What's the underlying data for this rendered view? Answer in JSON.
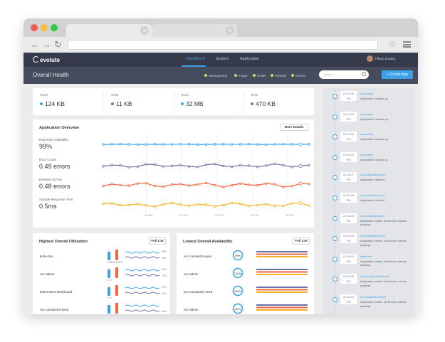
{
  "app": {
    "brand": "evolute",
    "nav": [
      "Dashboard",
      "System",
      "Application"
    ],
    "user_name": "Tiffany Bradley"
  },
  "subnav": {
    "title": "Overall Health",
    "filters": [
      "Management",
      "Image",
      "Health",
      "Partially",
      "Events"
    ],
    "search_placeholder": "search...",
    "create_label": "+ Create App"
  },
  "stats": [
    {
      "label": "Read",
      "value": "124 KB",
      "color": "#3aa3e8"
    },
    {
      "label": "Write",
      "value": "11 KB",
      "color": "#7b7f8c"
    },
    {
      "label": "Read",
      "value": "32 MB",
      "color": "#3aa3e8"
    },
    {
      "label": "Write",
      "value": "470 KB",
      "color": "#7b7f8c"
    }
  ],
  "overview": {
    "title": "Application Overview",
    "more_label": "More Details",
    "metrics": [
      {
        "label": "Reported Availability",
        "value": "99%",
        "color": "#3aa3e8"
      },
      {
        "label": "Error Count",
        "value": "0.49 errors",
        "color": "#6a6ea6"
      },
      {
        "label": "Deviation Errors",
        "value": "0.48 errors",
        "color": "#f2663f"
      },
      {
        "label": "Sample Response Time",
        "value": "0.5ms",
        "color": "#f4b125"
      }
    ],
    "times": [
      "09 AM",
      "12 PM",
      "03 PM",
      "06 PM",
      "09 PM"
    ]
  },
  "utilization": {
    "title": "Highest Overall Utilization",
    "full_label": "Full List",
    "rows": [
      {
        "name": "kube-dns",
        "c": "68%",
        "m": "92%",
        "p1": "99%",
        "p2": "29%"
      },
      {
        "name": "svc-admin",
        "c": "",
        "m": "",
        "p1": "86%",
        "p2": "70%"
      },
      {
        "name": "kubernetes-dashboard",
        "c": "",
        "m": "",
        "p1": "72%",
        "p2": "41%"
      },
      {
        "name": "svc-cassandra-seed",
        "c": "",
        "m": "",
        "p1": "",
        "p2": "65%"
      }
    ]
  },
  "availability": {
    "title": "Lowest Overall Availability",
    "full_label": "Full List",
    "rows": [
      {
        "name": "svc-cassandra-peer",
        "value": "99%"
      },
      {
        "name": "svc-admin",
        "value": "100%"
      },
      {
        "name": "svc-cassandra-seed",
        "value": "100%"
      },
      {
        "name": "svc-admin",
        "value": "100%"
      }
    ]
  },
  "activity": [
    {
      "time1": "21:40:00",
      "time2": "PM",
      "name": "svc-admin",
      "msg": "Application is back up."
    },
    {
      "time1": "21:40:00",
      "time2": "PM",
      "name": "svc-admin",
      "msg": "Application is back up."
    },
    {
      "time1": "21:40:00",
      "time2": "PM",
      "name": "svc-admin",
      "msg": "Application is back up."
    },
    {
      "time1": "21:40:00",
      "time2": "PM",
      "name": "svc-admin",
      "msg": "Application is back up."
    },
    {
      "time1": "21:38:27",
      "time2": "PM",
      "name": "svc-cassandra-peer",
      "msg": "Application deleted."
    },
    {
      "time1": "21:36:00",
      "time2": "PM",
      "name": "svc-cassandra-peer",
      "msg": "Application deleted."
    },
    {
      "time1": "21:36:00",
      "time2": "PM",
      "name": "svc-cassandra-peer",
      "msg": "Application online. All service checks passing."
    },
    {
      "time1": "21:36:00",
      "time2": "PM",
      "name": "svc-cassandra-peer",
      "msg": "Application online. All service checks passing."
    },
    {
      "time1": "21:36:00",
      "time2": "PM",
      "name": "kube-dns",
      "msg": "Application online. All service checks passing."
    },
    {
      "time1": "21:36:28",
      "time2": "PM",
      "name": "kubernetes-dashboard",
      "msg": "Application online. All service checks passing."
    },
    {
      "time1": "21:36:00",
      "time2": "PM",
      "name": "svc-cassandra-seed",
      "msg": "Application online. All service checks passing."
    }
  ]
}
